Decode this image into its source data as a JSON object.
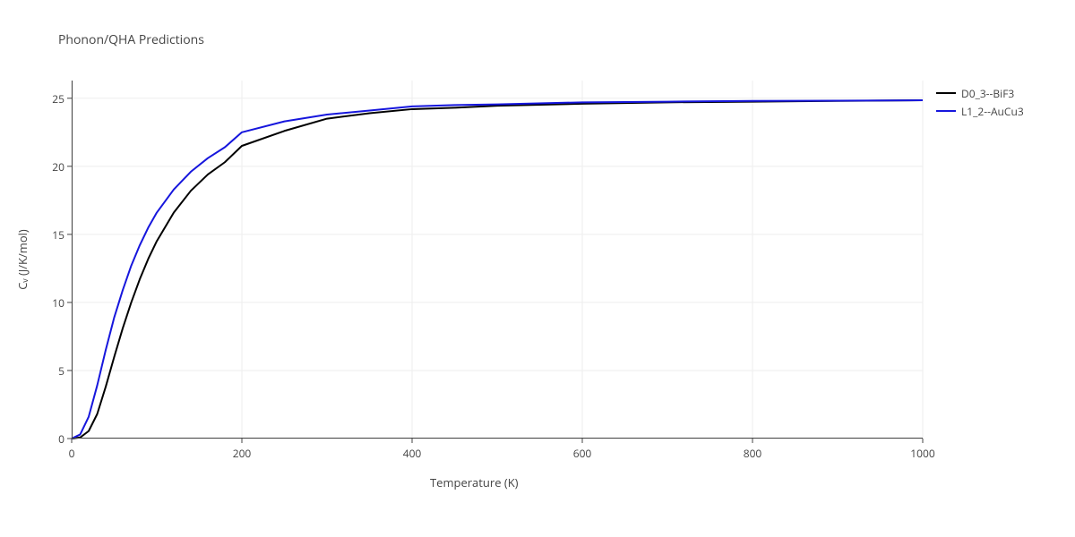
{
  "title": "Phonon/QHA Predictions",
  "chart": {
    "type": "line",
    "xlabel": "Temperature (K)",
    "ylabel": "Cᵥ (J/K/mol)",
    "xlim": [
      0,
      1000
    ],
    "ylim": [
      0,
      26.3
    ],
    "xticks": [
      0,
      200,
      400,
      600,
      800,
      1000
    ],
    "yticks": [
      0,
      5,
      10,
      15,
      20,
      25
    ],
    "plot_bg": "#ffffff",
    "grid_color": "#eeeeee",
    "axis_line_color": "#444444",
    "tick_color": "#444444",
    "tick_len": 5,
    "tick_label_fontsize": 12,
    "axis_label_fontsize": 13,
    "title_fontsize": 14,
    "line_width": 2,
    "series": [
      {
        "name": "D0_3--BiF3",
        "color": "#000000",
        "x": [
          0,
          10,
          20,
          30,
          40,
          50,
          60,
          70,
          80,
          90,
          100,
          120,
          140,
          160,
          180,
          200,
          250,
          300,
          350,
          400,
          450,
          500,
          600,
          700,
          800,
          900,
          1000
        ],
        "y": [
          0,
          0.08,
          0.55,
          1.8,
          3.8,
          6.0,
          8.1,
          10.0,
          11.7,
          13.2,
          14.5,
          16.6,
          18.2,
          19.4,
          20.3,
          21.5,
          22.6,
          23.5,
          23.9,
          24.2,
          24.3,
          24.45,
          24.6,
          24.7,
          24.75,
          24.8,
          24.85
        ]
      },
      {
        "name": "L1_2--AuCu3",
        "color": "#1616dd",
        "x": [
          0,
          10,
          20,
          30,
          40,
          50,
          60,
          70,
          80,
          90,
          100,
          120,
          140,
          160,
          180,
          200,
          250,
          300,
          350,
          400,
          450,
          500,
          600,
          700,
          800,
          900,
          1000
        ],
        "y": [
          0,
          0.3,
          1.6,
          3.9,
          6.5,
          8.9,
          10.9,
          12.7,
          14.2,
          15.5,
          16.6,
          18.3,
          19.6,
          20.6,
          21.4,
          22.5,
          23.3,
          23.8,
          24.1,
          24.4,
          24.5,
          24.55,
          24.7,
          24.75,
          24.8,
          24.82,
          24.85
        ]
      }
    ]
  },
  "legend_fontsize": 12
}
